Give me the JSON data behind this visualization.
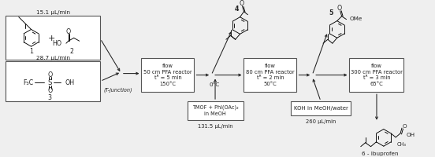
{
  "bg_color": "#efefef",
  "box_bg": "#ffffff",
  "box_edge": "#555555",
  "arrow_color": "#333333",
  "text_color": "#222222",
  "flow_rate_1": "15.1 μL/min",
  "flow_rate_3": "28.7 μL/min",
  "flow_rate_tmof": "131.5 μL/min",
  "flow_rate_koh": "260 μL/min",
  "label_1": "1",
  "label_2": "2",
  "label_3": "3",
  "label_4": "4",
  "label_5": "5",
  "label_6": "6 - Ibuprofen",
  "box1_line1": "flow",
  "box1_line2": "50 cm PFA reactor",
  "box1_line3": "tᴿ = 5 min",
  "box1_line4": "150°C",
  "box2_line1": "flow",
  "box2_line2": "80 cm PFA reactor",
  "box2_line3": "tᴿ = 2 min",
  "box2_line4": "50°C",
  "box3_line1": "flow",
  "box3_line2": "300 cm PFA reactor",
  "box3_line3": "tᴿ = 3 min",
  "box3_line4": "65°C",
  "tjunction": "(T-junction)",
  "temp_0c": "0°C",
  "tmof_line1": "TMOF + PhI(OAc)₂",
  "tmof_line2": "in MeOH",
  "koh_text": "KOH in MeOH/water",
  "ome_label": "OMe",
  "oh_label": "OH"
}
